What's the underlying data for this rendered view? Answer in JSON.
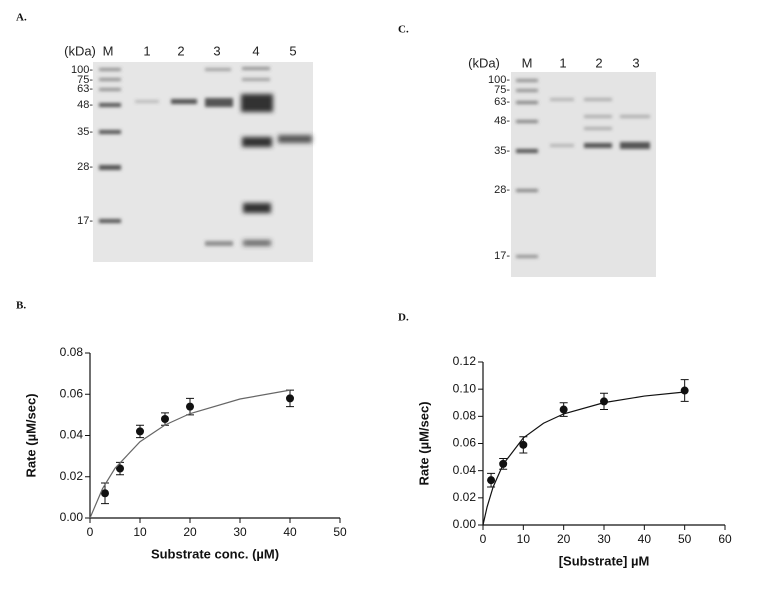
{
  "panel_labels": [
    "A.",
    "B.",
    "C.",
    "D."
  ],
  "gels": [
    {
      "lane_labels": [
        "(kDa)",
        "M",
        "1",
        "2",
        "3",
        "4",
        "5"
      ],
      "markers": [
        "100-",
        "75-",
        "63-",
        "48-",
        "35-",
        "28-",
        "17-"
      ]
    },
    {
      "lane_labels": [
        "(kDa)",
        "M",
        "1",
        "2",
        "3"
      ],
      "markers": [
        "100-",
        "75-",
        "63-",
        "48-",
        "35-",
        "28-",
        "17-"
      ]
    }
  ],
  "chart_data": [
    {
      "type": "scatter",
      "x_label": "Substrate conc. (µM)",
      "y_label": "Rate (µM/sec)",
      "xlim": [
        0,
        50
      ],
      "xticks": [
        0,
        10,
        20,
        30,
        40,
        50
      ],
      "ylim": [
        0,
        0.08
      ],
      "yticks": [
        {
          "value": 0,
          "label": "0.00"
        },
        {
          "value": 0.02,
          "label": "0.02"
        },
        {
          "value": 0.04,
          "label": "0.04"
        },
        {
          "value": 0.06,
          "label": "0.06"
        },
        {
          "value": 0.08,
          "label": "0.08"
        }
      ],
      "series": [
        {
          "style": "points",
          "color": "#111111",
          "x": [
            3,
            6,
            10,
            15,
            20,
            40
          ],
          "values": [
            0.012,
            0.024,
            0.042,
            0.048,
            0.054,
            0.058
          ],
          "errors": [
            0.005,
            0.003,
            0.003,
            0.003,
            0.004,
            0.004
          ]
        },
        {
          "style": "line",
          "color": "#666666",
          "x": [
            0,
            2.5,
            5,
            10,
            15,
            20,
            30,
            40
          ],
          "values": [
            0,
            0.0142,
            0.0241,
            0.037,
            0.0451,
            0.0506,
            0.0577,
            0.062
          ]
        }
      ]
    },
    {
      "type": "scatter",
      "x_label": "[Substrate] µM",
      "y_label": "Rate (µM/sec)",
      "xlim": [
        0,
        60
      ],
      "xticks": [
        0,
        10,
        20,
        30,
        40,
        50,
        60
      ],
      "ylim": [
        0,
        0.12
      ],
      "yticks": [
        {
          "value": 0,
          "label": "0.00"
        },
        {
          "value": 0.02,
          "label": "0.02"
        },
        {
          "value": 0.04,
          "label": "0.04"
        },
        {
          "value": 0.06,
          "label": "0.06"
        },
        {
          "value": 0.08,
          "label": "0.08"
        },
        {
          "value": 0.1,
          "label": "0.10"
        },
        {
          "value": 0.12,
          "label": "0.12"
        }
      ],
      "series": [
        {
          "style": "points",
          "color": "#111111",
          "x": [
            2,
            5,
            10,
            20,
            30,
            50
          ],
          "values": [
            0.033,
            0.045,
            0.059,
            0.085,
            0.091,
            0.099
          ],
          "errors": [
            0.005,
            0.004,
            0.006,
            0.005,
            0.006,
            0.008
          ]
        },
        {
          "style": "line",
          "color": "#111111",
          "x": [
            0,
            1,
            2.5,
            5,
            10,
            15,
            20,
            30,
            40,
            50
          ],
          "values": [
            0,
            0.0131,
            0.0279,
            0.0447,
            0.0641,
            0.0749,
            0.0818,
            0.0901,
            0.0949,
            0.0979
          ]
        }
      ]
    }
  ]
}
